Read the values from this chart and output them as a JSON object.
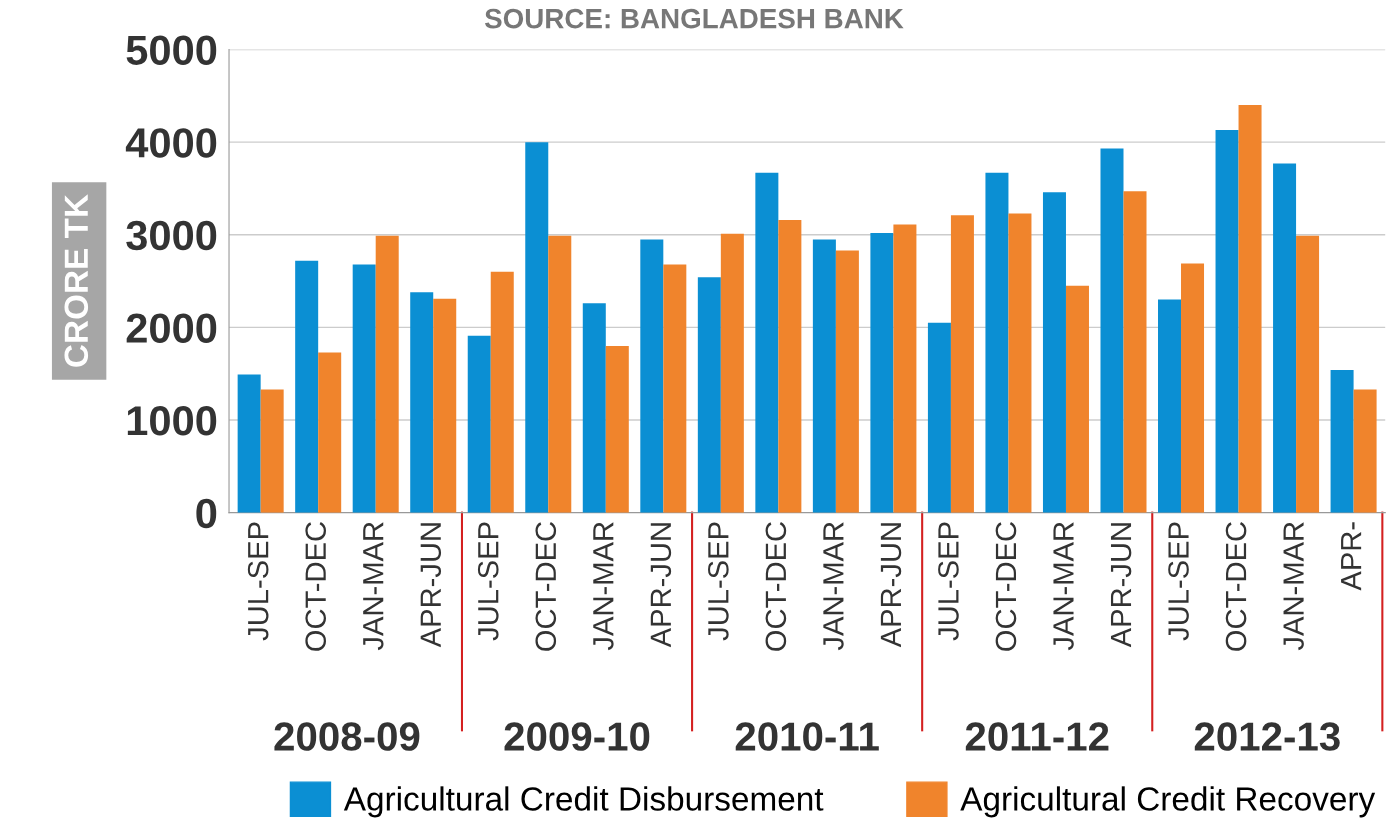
{
  "chart_data": {
    "type": "bar",
    "ylabel": "CRORE TK",
    "categories": [
      "JUL-SEP",
      "OCT-DEC",
      "JAN-MAR",
      "APR-JUN",
      "JUL-SEP",
      "OCT-DEC",
      "JAN-MAR",
      "APR-JUN",
      "JUL-SEP",
      "OCT-DEC",
      "JAN-MAR",
      "APR-JUN",
      "JUL-SEP",
      "OCT-DEC",
      "JAN-MAR",
      "APR-JUN",
      "JUL-SEP",
      "OCT-DEC",
      "JAN-MAR",
      "APR-"
    ],
    "series": [
      {
        "name": "Agricultural Credit Disbursement",
        "color": "#0b8fd3",
        "values": [
          1490,
          2720,
          2680,
          2380,
          1910,
          4000,
          2260,
          2950,
          2540,
          3670,
          2950,
          3020,
          2050,
          3670,
          3460,
          3930,
          2300,
          4130,
          3770,
          1540
        ]
      },
      {
        "name": "Agricultural Credit Recovery",
        "color": "#f0842c",
        "values": [
          1330,
          1730,
          2990,
          2310,
          2600,
          2990,
          1800,
          2680,
          3010,
          3160,
          2830,
          3110,
          3210,
          3230,
          2450,
          3470,
          2690,
          4400,
          2990,
          1330
        ]
      }
    ],
    "ylim": [
      0,
      5000
    ],
    "yticks": [
      0,
      1000,
      2000,
      3000,
      4000,
      5000
    ],
    "grid": "y",
    "legend": "bottom",
    "annotations": [
      "SOURCE: BANGLADESH BANK",
      "2008-09",
      "2009-10",
      "2010-11",
      "2011-12",
      "2012-13"
    ]
  }
}
